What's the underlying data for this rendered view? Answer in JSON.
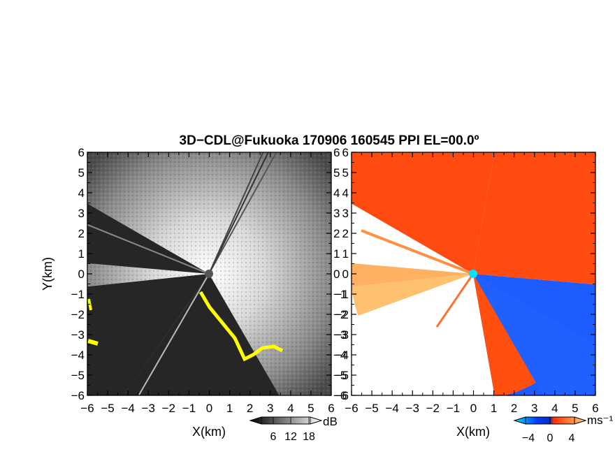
{
  "title": "3D−CDL@Fukuoka 170906 160545 PPI EL=00.0º",
  "panels": [
    {
      "id": "snr",
      "xlabel": "X(km)",
      "ylabel": "Y(km)",
      "colorbar": {
        "unit": "dB",
        "ticks": [
          "6",
          "12",
          "18"
        ],
        "colors": [
          "#000000",
          "#ffffff"
        ]
      }
    },
    {
      "id": "velocity",
      "xlabel": "X(km)",
      "colorbar": {
        "unit": "ms⁻¹",
        "ticks": [
          "−4",
          "0",
          "4"
        ],
        "colors": [
          "#00e5ff",
          "#0040ff",
          "#ff3000",
          "#ffd080"
        ]
      }
    }
  ],
  "colors": {
    "low_quality": "#ffff00",
    "radar_site": "#00e5ff"
  },
  "chart_data": [
    {
      "type": "heatmap",
      "title": "3D−CDL@Fukuoka 170906 160545 PPI EL=00.0º",
      "xlabel": "X(km)",
      "ylabel": "Y(km)",
      "xlim": [
        -6,
        6
      ],
      "ylim": [
        -6,
        6
      ],
      "xticks": [
        "−6",
        "−5",
        "−4",
        "−3",
        "−2",
        "−1",
        "0",
        "1",
        "2",
        "3",
        "4",
        "5",
        "6"
      ],
      "yticks": [
        "6",
        "5",
        "4",
        "3",
        "2",
        "1",
        "0",
        "−1",
        "−2",
        "−3",
        "−4",
        "−5",
        "−6"
      ],
      "colorbar_unit": "dB",
      "colorbar_ticks": [
        6,
        12,
        18
      ],
      "blocked_sectors_deg": [
        [
          150,
          175
        ],
        [
          186,
          235
        ]
      ]
    },
    {
      "type": "heatmap",
      "xlabel": "X(km)",
      "ylabel": "Y(km)",
      "xlim": [
        -6,
        6
      ],
      "ylim": [
        -6,
        6
      ],
      "xticks": [
        "−6",
        "−5",
        "−4",
        "−3",
        "−2",
        "−1",
        "0",
        "1",
        "2",
        "3",
        "4",
        "5",
        "6"
      ],
      "yticks": [
        "6",
        "5",
        "4",
        "3",
        "2",
        "1",
        "0",
        "−1",
        "−2",
        "−3",
        "−4",
        "−5",
        "−6"
      ],
      "colorbar_unit": "ms⁻¹",
      "colorbar_ticks": [
        -4,
        0,
        4
      ],
      "sectors": [
        {
          "from_deg": 280,
          "to_deg": 355,
          "value": -4
        },
        {
          "from_deg": 355,
          "to_deg": 80,
          "value": 3
        },
        {
          "from_deg": 80,
          "to_deg": 150,
          "value": 3
        },
        {
          "from_deg": 175,
          "to_deg": 186,
          "value": 2
        }
      ]
    }
  ]
}
